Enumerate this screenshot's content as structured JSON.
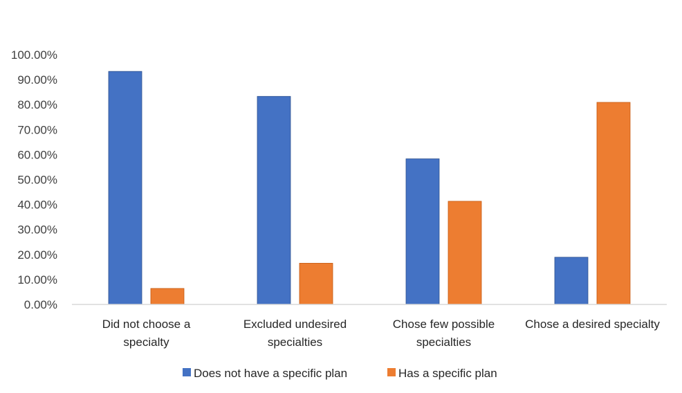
{
  "chart_data": {
    "type": "bar",
    "categories": [
      [
        "Did not choose a",
        "specialty"
      ],
      [
        "Excluded undesired",
        "specialties"
      ],
      [
        "Chose few possible",
        "specialties"
      ],
      [
        "Chose a desired specialty"
      ]
    ],
    "series": [
      {
        "name": "Does not have a specific plan",
        "color": "#4472C4",
        "values": [
          93.3,
          83.3,
          58.3,
          18.9
        ]
      },
      {
        "name": "Has a specific plan",
        "color": "#ED7D31",
        "values": [
          6.4,
          16.5,
          41.3,
          80.9
        ]
      }
    ],
    "ylim": [
      0,
      100
    ],
    "yticks": [
      "0.00%",
      "10.00%",
      "20.00%",
      "30.00%",
      "40.00%",
      "50.00%",
      "60.00%",
      "70.00%",
      "80.00%",
      "90.00%",
      "100.00%"
    ],
    "ytick_values": [
      0,
      10,
      20,
      30,
      40,
      50,
      60,
      70,
      80,
      90,
      100
    ],
    "grid": false,
    "legend_position": "bottom-center",
    "title": "",
    "xlabel": "",
    "ylabel": ""
  }
}
